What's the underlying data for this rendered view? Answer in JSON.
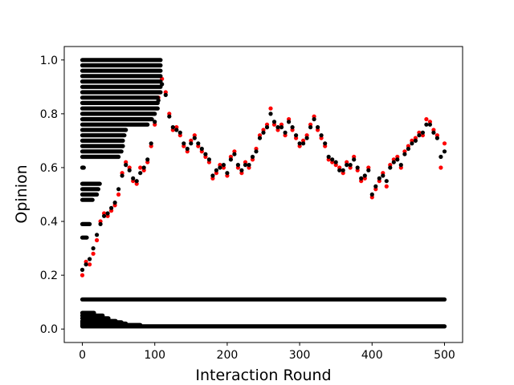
{
  "chart_data": {
    "type": "scatter",
    "title": "",
    "xlabel": "Interaction Round",
    "ylabel": "Opinion",
    "xlim": [
      -25,
      525
    ],
    "ylim": [
      -0.05,
      1.05
    ],
    "xticks": [
      0,
      100,
      200,
      300,
      400,
      500
    ],
    "yticks": [
      0.0,
      0.2,
      0.4,
      0.6,
      0.8,
      1.0
    ],
    "xtick_labels": [
      "0",
      "100",
      "200",
      "300",
      "400",
      "500"
    ],
    "ytick_labels": [
      "0.0",
      "0.2",
      "0.4",
      "0.6",
      "0.8",
      "1.0"
    ],
    "grid": false,
    "legend": "none",
    "series": [
      {
        "color": "#ff0000",
        "marker": "dot",
        "points": [
          [
            0,
            0.2
          ],
          [
            5,
            0.25
          ],
          [
            10,
            0.24
          ],
          [
            15,
            0.28
          ],
          [
            20,
            0.33
          ],
          [
            25,
            0.4
          ],
          [
            30,
            0.43
          ],
          [
            35,
            0.42
          ],
          [
            40,
            0.44
          ],
          [
            45,
            0.46
          ],
          [
            50,
            0.5
          ],
          [
            55,
            0.58
          ],
          [
            60,
            0.62
          ],
          [
            65,
            0.6
          ],
          [
            70,
            0.55
          ],
          [
            75,
            0.54
          ],
          [
            80,
            0.6
          ],
          [
            85,
            0.59
          ],
          [
            90,
            0.62
          ],
          [
            95,
            0.68
          ],
          [
            100,
            0.76
          ],
          [
            105,
            0.86
          ],
          [
            110,
            0.93
          ],
          [
            115,
            0.88
          ],
          [
            120,
            0.8
          ],
          [
            125,
            0.74
          ],
          [
            130,
            0.75
          ],
          [
            135,
            0.72
          ],
          [
            140,
            0.68
          ],
          [
            145,
            0.66
          ],
          [
            150,
            0.7
          ],
          [
            155,
            0.72
          ],
          [
            160,
            0.68
          ],
          [
            165,
            0.66
          ],
          [
            170,
            0.64
          ],
          [
            175,
            0.62
          ],
          [
            180,
            0.56
          ],
          [
            185,
            0.58
          ],
          [
            190,
            0.61
          ],
          [
            195,
            0.6
          ],
          [
            200,
            0.57
          ],
          [
            205,
            0.64
          ],
          [
            210,
            0.66
          ],
          [
            215,
            0.6
          ],
          [
            220,
            0.58
          ],
          [
            225,
            0.62
          ],
          [
            230,
            0.6
          ],
          [
            235,
            0.63
          ],
          [
            240,
            0.67
          ],
          [
            245,
            0.72
          ],
          [
            250,
            0.74
          ],
          [
            255,
            0.76
          ],
          [
            260,
            0.82
          ],
          [
            265,
            0.76
          ],
          [
            270,
            0.74
          ],
          [
            275,
            0.76
          ],
          [
            280,
            0.72
          ],
          [
            285,
            0.78
          ],
          [
            290,
            0.74
          ],
          [
            295,
            0.71
          ],
          [
            300,
            0.68
          ],
          [
            305,
            0.7
          ],
          [
            310,
            0.72
          ],
          [
            315,
            0.76
          ],
          [
            320,
            0.79
          ],
          [
            325,
            0.74
          ],
          [
            330,
            0.71
          ],
          [
            335,
            0.68
          ],
          [
            340,
            0.63
          ],
          [
            345,
            0.62
          ],
          [
            350,
            0.61
          ],
          [
            355,
            0.6
          ],
          [
            360,
            0.58
          ],
          [
            365,
            0.62
          ],
          [
            370,
            0.6
          ],
          [
            375,
            0.64
          ],
          [
            380,
            0.59
          ],
          [
            385,
            0.55
          ],
          [
            390,
            0.56
          ],
          [
            395,
            0.6
          ],
          [
            400,
            0.49
          ],
          [
            405,
            0.52
          ],
          [
            410,
            0.55
          ],
          [
            415,
            0.58
          ],
          [
            420,
            0.53
          ],
          [
            425,
            0.61
          ],
          [
            430,
            0.63
          ],
          [
            435,
            0.64
          ],
          [
            440,
            0.6
          ],
          [
            445,
            0.66
          ],
          [
            450,
            0.68
          ],
          [
            455,
            0.7
          ],
          [
            460,
            0.71
          ],
          [
            465,
            0.73
          ],
          [
            470,
            0.72
          ],
          [
            475,
            0.78
          ],
          [
            480,
            0.77
          ],
          [
            485,
            0.74
          ],
          [
            490,
            0.72
          ],
          [
            495,
            0.6
          ],
          [
            500,
            0.69
          ]
        ]
      },
      {
        "color": "#000000",
        "marker": "dot",
        "points": [
          [
            0,
            0.22
          ],
          [
            5,
            0.24
          ],
          [
            10,
            0.26
          ],
          [
            15,
            0.3
          ],
          [
            20,
            0.35
          ],
          [
            25,
            0.39
          ],
          [
            30,
            0.42
          ],
          [
            35,
            0.43
          ],
          [
            40,
            0.45
          ],
          [
            45,
            0.47
          ],
          [
            50,
            0.52
          ],
          [
            55,
            0.57
          ],
          [
            60,
            0.61
          ],
          [
            65,
            0.59
          ],
          [
            70,
            0.56
          ],
          [
            75,
            0.55
          ],
          [
            80,
            0.58
          ],
          [
            85,
            0.6
          ],
          [
            90,
            0.63
          ],
          [
            95,
            0.69
          ],
          [
            100,
            0.77
          ],
          [
            105,
            0.85
          ],
          [
            110,
            0.91
          ],
          [
            115,
            0.87
          ],
          [
            120,
            0.79
          ],
          [
            125,
            0.75
          ],
          [
            130,
            0.74
          ],
          [
            135,
            0.73
          ],
          [
            140,
            0.69
          ],
          [
            145,
            0.67
          ],
          [
            150,
            0.69
          ],
          [
            155,
            0.71
          ],
          [
            160,
            0.69
          ],
          [
            165,
            0.67
          ],
          [
            170,
            0.65
          ],
          [
            175,
            0.63
          ],
          [
            180,
            0.57
          ],
          [
            185,
            0.59
          ],
          [
            190,
            0.6
          ],
          [
            195,
            0.61
          ],
          [
            200,
            0.58
          ],
          [
            205,
            0.63
          ],
          [
            210,
            0.65
          ],
          [
            215,
            0.61
          ],
          [
            220,
            0.59
          ],
          [
            225,
            0.61
          ],
          [
            230,
            0.61
          ],
          [
            235,
            0.64
          ],
          [
            240,
            0.66
          ],
          [
            245,
            0.71
          ],
          [
            250,
            0.73
          ],
          [
            255,
            0.75
          ],
          [
            260,
            0.8
          ],
          [
            265,
            0.77
          ],
          [
            270,
            0.75
          ],
          [
            275,
            0.75
          ],
          [
            280,
            0.73
          ],
          [
            285,
            0.77
          ],
          [
            290,
            0.75
          ],
          [
            295,
            0.72
          ],
          [
            300,
            0.69
          ],
          [
            305,
            0.69
          ],
          [
            310,
            0.71
          ],
          [
            315,
            0.75
          ],
          [
            320,
            0.78
          ],
          [
            325,
            0.75
          ],
          [
            330,
            0.72
          ],
          [
            335,
            0.69
          ],
          [
            340,
            0.64
          ],
          [
            345,
            0.63
          ],
          [
            350,
            0.62
          ],
          [
            355,
            0.59
          ],
          [
            360,
            0.59
          ],
          [
            365,
            0.61
          ],
          [
            370,
            0.61
          ],
          [
            375,
            0.63
          ],
          [
            380,
            0.6
          ],
          [
            385,
            0.56
          ],
          [
            390,
            0.57
          ],
          [
            395,
            0.59
          ],
          [
            400,
            0.5
          ],
          [
            405,
            0.53
          ],
          [
            410,
            0.56
          ],
          [
            415,
            0.57
          ],
          [
            420,
            0.55
          ],
          [
            425,
            0.6
          ],
          [
            430,
            0.62
          ],
          [
            435,
            0.63
          ],
          [
            440,
            0.61
          ],
          [
            445,
            0.65
          ],
          [
            450,
            0.67
          ],
          [
            455,
            0.69
          ],
          [
            460,
            0.7
          ],
          [
            465,
            0.72
          ],
          [
            470,
            0.73
          ],
          [
            475,
            0.76
          ],
          [
            480,
            0.76
          ],
          [
            485,
            0.73
          ],
          [
            490,
            0.71
          ],
          [
            495,
            0.64
          ],
          [
            500,
            0.66
          ]
        ]
      },
      {
        "color": "#000000",
        "marker": "dot",
        "bands": [
          {
            "y": 1.0,
            "x": [
              0,
              108
            ]
          },
          {
            "y": 0.98,
            "x": [
              0,
              108
            ]
          },
          {
            "y": 0.96,
            "x": [
              0,
              108
            ]
          },
          {
            "y": 0.94,
            "x": [
              0,
              108
            ]
          },
          {
            "y": 0.92,
            "x": [
              0,
              108
            ]
          },
          {
            "y": 0.9,
            "x": [
              0,
              108
            ]
          },
          {
            "y": 0.88,
            "x": [
              0,
              108
            ]
          },
          {
            "y": 0.86,
            "x": [
              0,
              104
            ]
          },
          {
            "y": 0.84,
            "x": [
              0,
              104
            ]
          },
          {
            "y": 0.82,
            "x": [
              0,
              104
            ]
          },
          {
            "y": 0.8,
            "x": [
              0,
              100
            ]
          },
          {
            "y": 0.78,
            "x": [
              0,
              96
            ]
          },
          {
            "y": 0.76,
            "x": [
              0,
              90
            ]
          },
          {
            "y": 0.74,
            "x": [
              0,
              60
            ]
          },
          {
            "y": 0.72,
            "x": [
              0,
              58
            ]
          },
          {
            "y": 0.7,
            "x": [
              0,
              56
            ]
          },
          {
            "y": 0.68,
            "x": [
              0,
              56
            ]
          },
          {
            "y": 0.66,
            "x": [
              0,
              54
            ]
          },
          {
            "y": 0.64,
            "x": [
              0,
              50
            ]
          },
          {
            "y": 0.6,
            "x": [
              0,
              2
            ]
          },
          {
            "y": 0.54,
            "x": [
              0,
              24
            ]
          },
          {
            "y": 0.52,
            "x": [
              0,
              22
            ]
          },
          {
            "y": 0.5,
            "x": [
              0,
              20
            ]
          },
          {
            "y": 0.48,
            "x": [
              0,
              14
            ]
          },
          {
            "y": 0.39,
            "x": [
              0,
              10
            ]
          },
          {
            "y": 0.34,
            "x": [
              0,
              6
            ]
          },
          {
            "y": 0.11,
            "x": [
              0,
              500
            ]
          },
          {
            "y": 0.06,
            "x": [
              0,
              16
            ]
          },
          {
            "y": 0.05,
            "x": [
              0,
              28
            ]
          },
          {
            "y": 0.04,
            "x": [
              0,
              36
            ]
          },
          {
            "y": 0.03,
            "x": [
              0,
              46
            ]
          },
          {
            "y": 0.025,
            "x": [
              0,
              54
            ]
          },
          {
            "y": 0.02,
            "x": [
              0,
              60
            ]
          },
          {
            "y": 0.015,
            "x": [
              0,
              80
            ]
          },
          {
            "y": 0.01,
            "x": [
              0,
              500
            ]
          }
        ]
      }
    ]
  }
}
